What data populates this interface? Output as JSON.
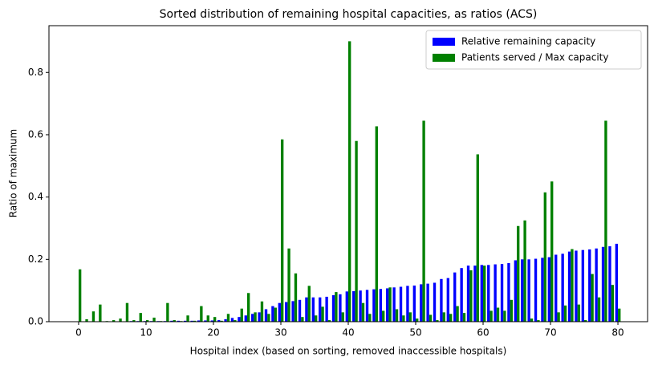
{
  "chart_data": {
    "type": "bar",
    "title": "Sorted distribution of remaining hospital capacities, as ratios (ACS)",
    "xlabel": "Hospital index (based on sorting, removed inaccessible hospitals)",
    "ylabel": "Ratio of maximum",
    "x": [
      0,
      1,
      2,
      3,
      4,
      5,
      6,
      7,
      8,
      9,
      10,
      11,
      12,
      13,
      14,
      15,
      16,
      17,
      18,
      19,
      20,
      21,
      22,
      23,
      24,
      25,
      26,
      27,
      28,
      29,
      30,
      31,
      32,
      33,
      34,
      35,
      36,
      37,
      38,
      39,
      40,
      41,
      42,
      43,
      44,
      45,
      46,
      47,
      48,
      49,
      50,
      51,
      52,
      53,
      54,
      55,
      56,
      57,
      58,
      59,
      60,
      61,
      62,
      63,
      64,
      65,
      66,
      67,
      68,
      69,
      70,
      71,
      72,
      73,
      74,
      75,
      76,
      77,
      78,
      79,
      80
    ],
    "series": [
      {
        "name": "Relative remaining capacity",
        "color": "#0000ff",
        "values": [
          0.001,
          0.001,
          0.001,
          0.001,
          0.001,
          0.001,
          0.001,
          0.001,
          0.002,
          0.002,
          0.002,
          0.002,
          0.002,
          0.002,
          0.003,
          0.003,
          0.003,
          0.003,
          0.004,
          0.004,
          0.004,
          0.005,
          0.008,
          0.012,
          0.015,
          0.02,
          0.025,
          0.03,
          0.04,
          0.05,
          0.06,
          0.063,
          0.066,
          0.07,
          0.078,
          0.078,
          0.078,
          0.08,
          0.085,
          0.088,
          0.097,
          0.098,
          0.1,
          0.102,
          0.104,
          0.105,
          0.107,
          0.11,
          0.112,
          0.115,
          0.116,
          0.12,
          0.122,
          0.125,
          0.137,
          0.14,
          0.158,
          0.172,
          0.18,
          0.18,
          0.182,
          0.182,
          0.184,
          0.185,
          0.188,
          0.197,
          0.2,
          0.2,
          0.202,
          0.205,
          0.207,
          0.215,
          0.218,
          0.225,
          0.228,
          0.23,
          0.232,
          0.235,
          0.24,
          0.242,
          0.25
        ]
      },
      {
        "name": "Patients served / Max capacity",
        "color": "#008000",
        "values": [
          0.168,
          0.008,
          0.033,
          0.055,
          0.002,
          0.005,
          0.01,
          0.06,
          0.005,
          0.028,
          0.005,
          0.013,
          0.002,
          0.06,
          0.005,
          0.002,
          0.02,
          0.003,
          0.05,
          0.02,
          0.015,
          0.003,
          0.025,
          0.005,
          0.042,
          0.092,
          0.03,
          0.065,
          0.025,
          0.045,
          0.585,
          0.235,
          0.155,
          0.015,
          0.115,
          0.02,
          0.048,
          0.005,
          0.095,
          0.03,
          0.9,
          0.58,
          0.06,
          0.025,
          0.627,
          0.035,
          0.11,
          0.04,
          0.02,
          0.03,
          0.01,
          0.645,
          0.022,
          0.005,
          0.03,
          0.025,
          0.05,
          0.028,
          0.165,
          0.537,
          0.18,
          0.035,
          0.045,
          0.035,
          0.07,
          0.307,
          0.325,
          0.01,
          0.005,
          0.415,
          0.45,
          0.03,
          0.052,
          0.233,
          0.055,
          0.005,
          0.153,
          0.078,
          0.645,
          0.118,
          0.042
        ]
      }
    ],
    "xlim": [
      -4.4,
      84.4
    ],
    "xticks": [
      0,
      10,
      20,
      30,
      40,
      50,
      60,
      70,
      80
    ],
    "ylim": [
      0,
      0.95
    ],
    "yticks": [
      {
        "value": 0,
        "label": "0.0"
      },
      0.2,
      0.4,
      0.6,
      0.8
    ],
    "legend": "upper right",
    "grid": false
  }
}
